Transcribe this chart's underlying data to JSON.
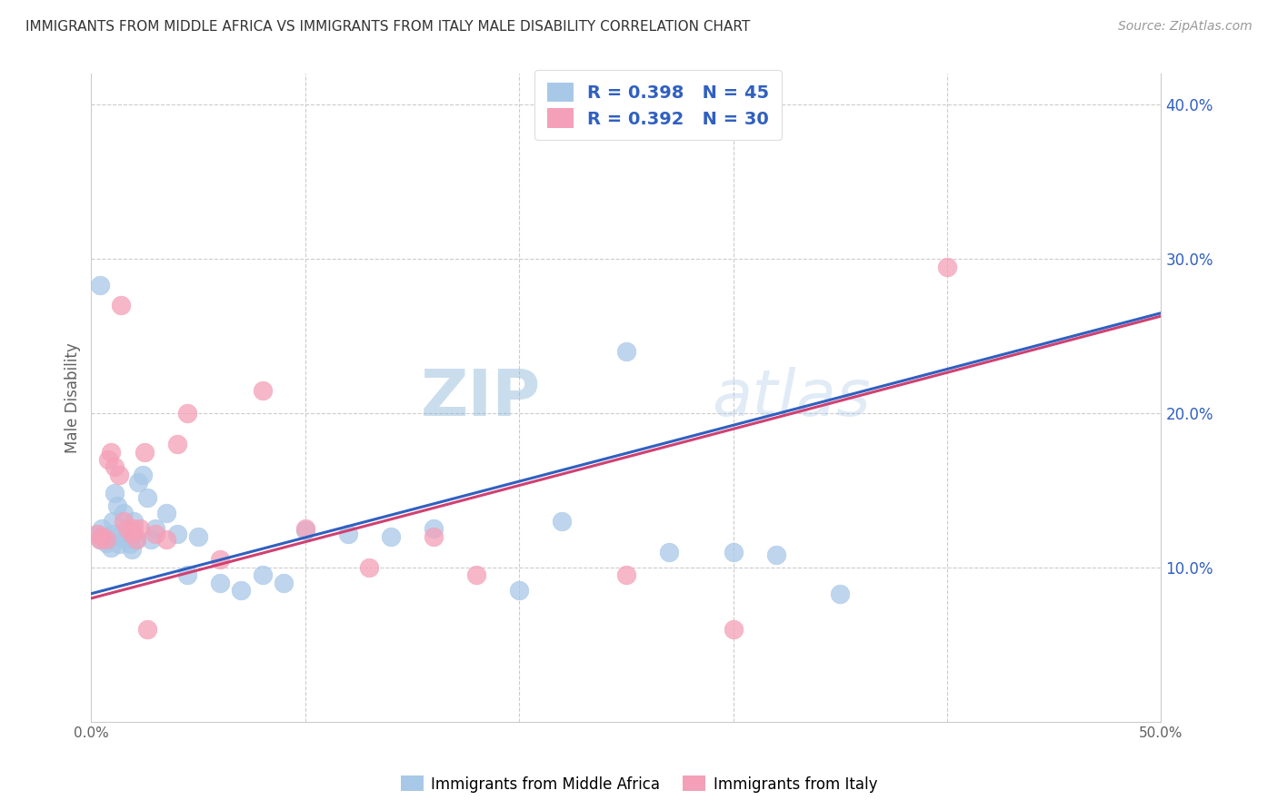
{
  "title": "IMMIGRANTS FROM MIDDLE AFRICA VS IMMIGRANTS FROM ITALY MALE DISABILITY CORRELATION CHART",
  "source": "Source: ZipAtlas.com",
  "ylabel": "Male Disability",
  "xlim": [
    0.0,
    0.5
  ],
  "ylim": [
    0.0,
    0.42
  ],
  "yticks": [
    0.1,
    0.2,
    0.3,
    0.4
  ],
  "ytick_labels": [
    "10.0%",
    "20.0%",
    "30.0%",
    "40.0%"
  ],
  "xticks": [
    0.0,
    0.1,
    0.2,
    0.3,
    0.4,
    0.5
  ],
  "xtick_labels": [
    "0.0%",
    "",
    "",
    "",
    "",
    "50.0%"
  ],
  "legend_labels": [
    "Immigrants from Middle Africa",
    "Immigrants from Italy"
  ],
  "R_blue": 0.398,
  "N_blue": 45,
  "R_pink": 0.392,
  "N_pink": 30,
  "blue_color": "#a8c8e8",
  "pink_color": "#f4a0b8",
  "blue_line_color": "#3060c0",
  "pink_line_color": "#d04070",
  "axis_label_color": "#606060",
  "legend_text_color": "#3060c0",
  "watermark_zip": "ZIP",
  "watermark_atlas": "atlas",
  "blue_x": [
    0.003,
    0.004,
    0.005,
    0.006,
    0.007,
    0.008,
    0.009,
    0.01,
    0.01,
    0.011,
    0.012,
    0.013,
    0.014,
    0.015,
    0.016,
    0.017,
    0.018,
    0.019,
    0.02,
    0.021,
    0.022,
    0.024,
    0.026,
    0.028,
    0.03,
    0.035,
    0.04,
    0.045,
    0.05,
    0.06,
    0.07,
    0.08,
    0.09,
    0.1,
    0.12,
    0.14,
    0.16,
    0.2,
    0.22,
    0.25,
    0.27,
    0.3,
    0.32,
    0.35,
    0.004
  ],
  "blue_y": [
    0.122,
    0.118,
    0.125,
    0.12,
    0.116,
    0.119,
    0.113,
    0.122,
    0.13,
    0.148,
    0.14,
    0.115,
    0.12,
    0.135,
    0.118,
    0.125,
    0.115,
    0.112,
    0.13,
    0.118,
    0.155,
    0.16,
    0.145,
    0.118,
    0.125,
    0.135,
    0.122,
    0.095,
    0.12,
    0.09,
    0.085,
    0.095,
    0.09,
    0.124,
    0.122,
    0.12,
    0.125,
    0.085,
    0.13,
    0.24,
    0.11,
    0.11,
    0.108,
    0.083,
    0.283
  ],
  "pink_x": [
    0.003,
    0.005,
    0.007,
    0.009,
    0.011,
    0.013,
    0.015,
    0.017,
    0.019,
    0.021,
    0.023,
    0.025,
    0.03,
    0.035,
    0.04,
    0.045,
    0.06,
    0.08,
    0.1,
    0.13,
    0.16,
    0.004,
    0.008,
    0.014,
    0.02,
    0.026,
    0.18,
    0.25,
    0.3,
    0.4
  ],
  "pink_y": [
    0.122,
    0.12,
    0.118,
    0.175,
    0.165,
    0.16,
    0.13,
    0.125,
    0.122,
    0.118,
    0.125,
    0.175,
    0.122,
    0.118,
    0.18,
    0.2,
    0.105,
    0.215,
    0.125,
    0.1,
    0.12,
    0.118,
    0.17,
    0.27,
    0.125,
    0.06,
    0.095,
    0.095,
    0.06,
    0.295
  ],
  "line_blue_x0": 0.0,
  "line_blue_y0": 0.083,
  "line_blue_x1": 0.5,
  "line_blue_y1": 0.265,
  "line_pink_x0": 0.0,
  "line_pink_y0": 0.08,
  "line_pink_x1": 0.5,
  "line_pink_y1": 0.263
}
